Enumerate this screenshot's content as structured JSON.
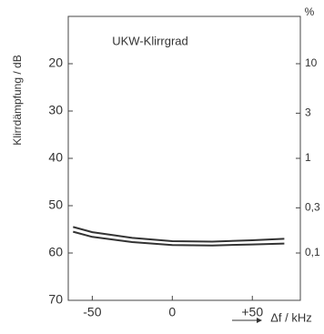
{
  "chart_data": {
    "type": "line",
    "title": "UKW-Klirrgrad",
    "y_label": "Klirrdämpfung / dB",
    "y2_label": "%",
    "x_label": "Δf / kHz",
    "xlim": [
      -65,
      80
    ],
    "xticks": [
      -50,
      0,
      {
        "value": 50,
        "label": "+50"
      }
    ],
    "ylim": [
      10,
      70
    ],
    "y_inverted": true,
    "yticks": [
      20,
      30,
      40,
      50,
      60,
      70
    ],
    "y2lim": [
      0.03162,
      31.62
    ],
    "y2_log": true,
    "y2ticks": [
      10,
      3,
      1,
      {
        "value": 0.3,
        "label": "0,3"
      },
      {
        "value": 0.1,
        "label": "0,1"
      }
    ],
    "grid": false,
    "x": [
      -62,
      -50,
      -25,
      0,
      25,
      50,
      70
    ],
    "series": [
      {
        "color": "#333333",
        "values": [
          54.5,
          55.6,
          56.8,
          57.5,
          57.6,
          57.3,
          57.0
        ]
      },
      {
        "color": "#333333",
        "values": [
          55.5,
          56.6,
          57.7,
          58.3,
          58.4,
          58.2,
          58.0
        ]
      }
    ]
  }
}
